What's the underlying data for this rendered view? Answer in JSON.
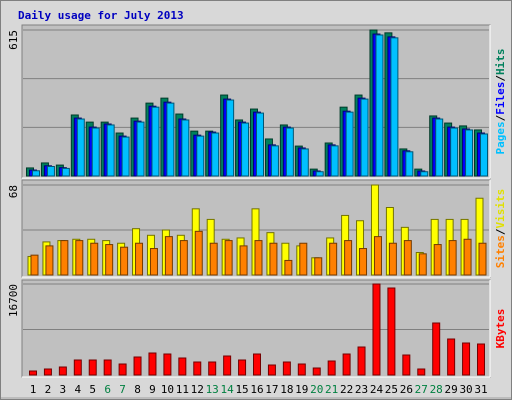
{
  "chart_data": [
    {
      "type": "bar",
      "title": "Daily usage for July 2013",
      "legend_separator": "/",
      "ylim": [
        0,
        615
      ],
      "yticks": [
        615
      ],
      "series": [
        {
          "name": "Hits",
          "color": "#00805c",
          "values": [
            34,
            55,
            46,
            257,
            227,
            227,
            181,
            244,
            307,
            328,
            261,
            189,
            189,
            341,
            236,
            282,
            156,
            215,
            126,
            29,
            139,
            290,
            341,
            615,
            603,
            114,
            29,
            253,
            223,
            211,
            194
          ]
        },
        {
          "name": "Files",
          "color": "#0000ff",
          "values": [
            25,
            43,
            35,
            244,
            206,
            219,
            168,
            231,
            294,
            311,
            240,
            172,
            185,
            324,
            227,
            269,
            131,
            206,
            118,
            21,
            131,
            273,
            328,
            598,
            586,
            106,
            21,
            244,
            206,
            198,
            181
          ]
        },
        {
          "name": "Pages",
          "color": "#00c0ff",
          "values": [
            22,
            40,
            32,
            240,
            202,
            215,
            164,
            227,
            290,
            307,
            236,
            168,
            181,
            320,
            223,
            265,
            127,
            202,
            114,
            18,
            127,
            269,
            324,
            594,
            582,
            102,
            18,
            240,
            202,
            194,
            177
          ]
        }
      ]
    },
    {
      "type": "bar",
      "legend_separator": "/",
      "ylim": [
        0,
        68
      ],
      "yticks": [
        68
      ],
      "series": [
        {
          "name": "Visits",
          "color": "#ffff00",
          "values": [
            14,
            25,
            26,
            27,
            27,
            26,
            24,
            35,
            30,
            34,
            30,
            50,
            42,
            27,
            28,
            50,
            32,
            24,
            22,
            13,
            28,
            45,
            41,
            68,
            51,
            36,
            17,
            42,
            42,
            42,
            58
          ]
        },
        {
          "name": "Sites",
          "color": "#ff8000",
          "values": [
            15,
            22,
            26,
            26,
            24,
            23,
            21,
            24,
            20,
            29,
            26,
            33,
            24,
            26,
            22,
            26,
            24,
            11,
            24,
            13,
            24,
            26,
            20,
            29,
            24,
            26,
            16,
            23,
            26,
            27,
            24
          ]
        }
      ]
    },
    {
      "type": "bar",
      "ylim": [
        0,
        16700
      ],
      "yticks": [
        16700
      ],
      "categories": [
        "1",
        "2",
        "3",
        "4",
        "5",
        "6",
        "7",
        "8",
        "9",
        "10",
        "11",
        "12",
        "13",
        "14",
        "15",
        "16",
        "17",
        "18",
        "19",
        "20",
        "21",
        "22",
        "23",
        "24",
        "25",
        "26",
        "27",
        "28",
        "29",
        "30",
        "31"
      ],
      "category_colors": [
        "#000000",
        "#000000",
        "#000000",
        "#000000",
        "#000000",
        "#008040",
        "#008040",
        "#000000",
        "#000000",
        "#000000",
        "#000000",
        "#000000",
        "#008040",
        "#008040",
        "#000000",
        "#000000",
        "#000000",
        "#000000",
        "#000000",
        "#008040",
        "#008040",
        "#000000",
        "#000000",
        "#000000",
        "#000000",
        "#000000",
        "#008040",
        "#008040",
        "#000000",
        "#000000",
        "#000000"
      ],
      "series": [
        {
          "name": "KBytes",
          "color": "#ff0000",
          "values": [
            734,
            1101,
            1468,
            2753,
            2753,
            2753,
            2019,
            3303,
            4037,
            3854,
            3120,
            2386,
            2386,
            3487,
            2753,
            3854,
            1835,
            2386,
            2019,
            1285,
            2569,
            3854,
            5138,
            16700,
            15965,
            3670,
            1101,
            9542,
            6606,
            5872,
            5689
          ]
        }
      ]
    }
  ]
}
